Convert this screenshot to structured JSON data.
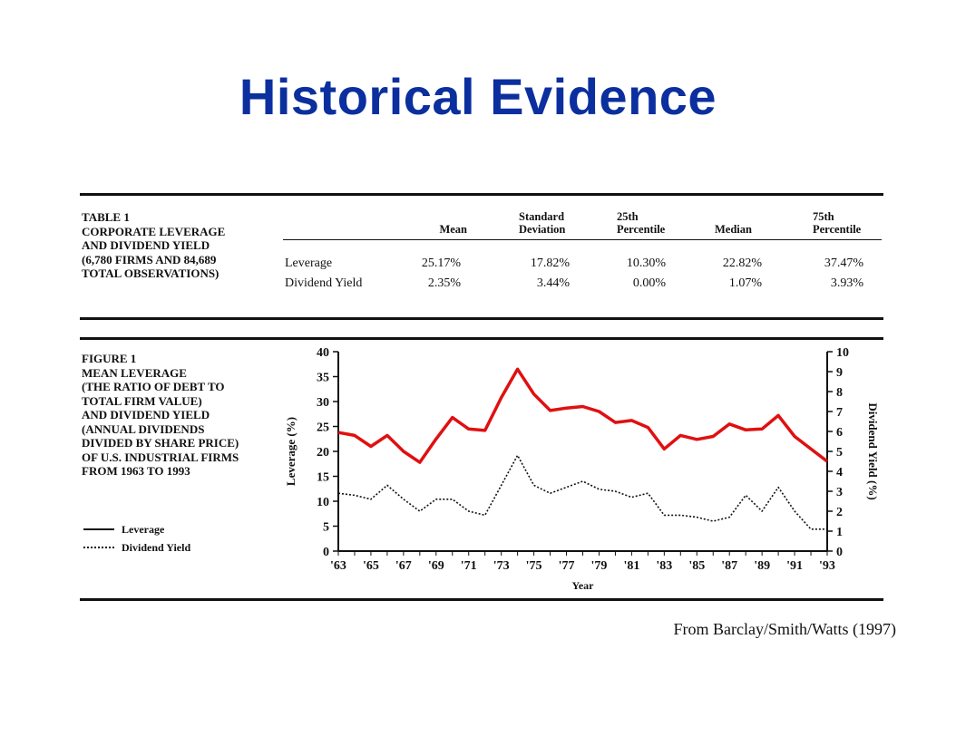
{
  "slide": {
    "title": "Historical Evidence",
    "source": "From Barclay/Smith/Watts (1997)"
  },
  "table": {
    "caption_lines": [
      "TABLE 1",
      "CORPORATE LEVERAGE",
      "AND DIVIDEND YIELD",
      "(6,780 FIRMS AND 84,689",
      "TOTAL OBSERVATIONS)"
    ],
    "columns": [
      {
        "line1": "",
        "line2": "Mean"
      },
      {
        "line1": "Standard",
        "line2": "Deviation"
      },
      {
        "line1": "25th",
        "line2": "Percentile"
      },
      {
        "line1": "",
        "line2": "Median"
      },
      {
        "line1": "75th",
        "line2": "Percentile"
      }
    ],
    "rows": [
      {
        "label": "Leverage",
        "values": [
          "25.17%",
          "17.82%",
          "10.30%",
          "22.82%",
          "37.47%"
        ]
      },
      {
        "label": "Dividend Yield",
        "values": [
          "2.35%",
          "3.44%",
          "0.00%",
          "1.07%",
          "3.93%"
        ]
      }
    ]
  },
  "figure": {
    "caption_lines": [
      "FIGURE 1",
      "MEAN LEVERAGE",
      "(THE RATIO OF DEBT TO",
      "TOTAL FIRM VALUE)",
      "AND DIVIDEND YIELD",
      "(ANNUAL DIVIDENDS",
      "DIVIDED BY SHARE PRICE)",
      "OF U.S. INDUSTRIAL FIRMS",
      "FROM 1963 TO 1993"
    ],
    "legend": [
      {
        "label": "Leverage",
        "style": "solid"
      },
      {
        "label": "Dividend Yield",
        "style": "dotted"
      }
    ]
  },
  "chart_data": {
    "type": "line",
    "xlabel": "Year",
    "ylabel": "Leverage (%)",
    "y2label": "Dividend Yield (%)",
    "ylim": [
      0,
      40
    ],
    "y2lim": [
      0,
      10
    ],
    "yticks": [
      0,
      5,
      10,
      15,
      20,
      25,
      30,
      35,
      40
    ],
    "y2ticks": [
      0,
      1,
      2,
      3,
      4,
      5,
      6,
      7,
      8,
      9,
      10
    ],
    "xlim": [
      1963,
      1993
    ],
    "xtick_labels": [
      "'63",
      "'65",
      "'67",
      "'69",
      "'71",
      "'73",
      "'75",
      "'77",
      "'79",
      "'81",
      "'83",
      "'85",
      "'87",
      "'89",
      "'91",
      "'93"
    ],
    "xtick_years": [
      1963,
      1965,
      1967,
      1969,
      1971,
      1973,
      1975,
      1977,
      1979,
      1981,
      1983,
      1985,
      1987,
      1989,
      1991,
      1993
    ],
    "x": [
      1963,
      1964,
      1965,
      1966,
      1967,
      1968,
      1969,
      1970,
      1971,
      1972,
      1973,
      1974,
      1975,
      1976,
      1977,
      1978,
      1979,
      1980,
      1981,
      1982,
      1983,
      1984,
      1985,
      1986,
      1987,
      1988,
      1989,
      1990,
      1991,
      1992,
      1993
    ],
    "series": [
      {
        "name": "Leverage",
        "axis": "left",
        "color": "#e01010",
        "style": "solid",
        "values": [
          23.8,
          23.2,
          21.0,
          23.2,
          20.0,
          17.8,
          22.5,
          26.8,
          24.5,
          24.2,
          30.8,
          36.5,
          31.5,
          28.2,
          28.7,
          29.0,
          28.0,
          25.8,
          26.2,
          24.8,
          20.5,
          23.2,
          22.4,
          23.0,
          25.5,
          24.3,
          24.5,
          27.2,
          23.0,
          20.5,
          18.0
        ]
      },
      {
        "name": "Dividend Yield",
        "axis": "right",
        "color": "#111111",
        "style": "dotted",
        "values": [
          2.9,
          2.8,
          2.6,
          3.3,
          2.6,
          2.0,
          2.6,
          2.6,
          2.0,
          1.8,
          3.3,
          4.8,
          3.3,
          2.9,
          3.2,
          3.5,
          3.1,
          3.0,
          2.7,
          2.9,
          1.8,
          1.8,
          1.7,
          1.5,
          1.7,
          2.8,
          2.0,
          3.2,
          2.0,
          1.1,
          1.1
        ]
      }
    ],
    "grid": false
  }
}
